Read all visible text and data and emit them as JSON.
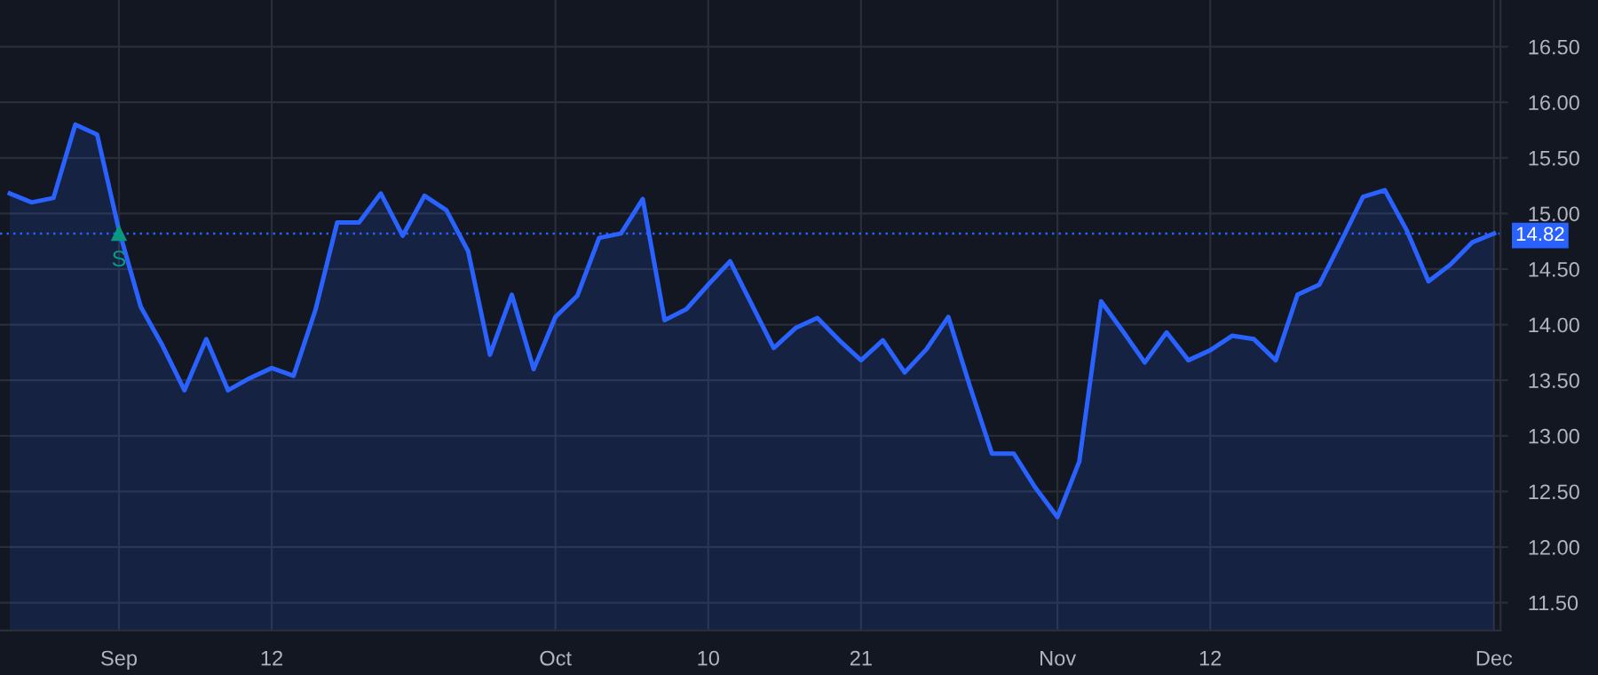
{
  "chart_data": {
    "type": "area",
    "categories": [
      null,
      null,
      null,
      null,
      null,
      "Sep",
      null,
      null,
      null,
      null,
      null,
      null,
      "12",
      null,
      null,
      null,
      null,
      null,
      null,
      null,
      null,
      null,
      null,
      null,
      null,
      "Oct",
      null,
      null,
      null,
      null,
      null,
      null,
      "10",
      null,
      null,
      null,
      null,
      null,
      null,
      "21",
      null,
      null,
      null,
      null,
      null,
      null,
      null,
      null,
      "Nov",
      null,
      null,
      null,
      null,
      null,
      null,
      "12",
      null,
      null,
      null,
      null,
      null,
      null,
      null,
      null,
      null,
      null,
      null,
      null,
      "Dec"
    ],
    "series": [
      {
        "color": "#2962ff",
        "values": [
          15.18,
          15.1,
          15.14,
          15.8,
          15.71,
          14.85,
          14.16,
          13.81,
          13.41,
          13.87,
          13.41,
          13.52,
          13.61,
          13.54,
          14.13,
          14.92,
          14.92,
          15.18,
          14.8,
          15.16,
          15.03,
          14.66,
          13.73,
          14.27,
          13.6,
          14.07,
          14.26,
          14.78,
          14.82,
          15.13,
          14.04,
          14.14,
          14.36,
          14.57,
          14.18,
          13.79,
          13.97,
          14.06,
          13.86,
          13.68,
          13.86,
          13.57,
          13.78,
          14.07,
          13.44,
          12.84,
          12.84,
          12.53,
          12.27,
          12.77,
          14.21,
          13.94,
          13.66,
          13.93,
          13.68,
          13.77,
          13.9,
          13.87,
          13.68,
          14.27,
          14.36,
          14.75,
          15.15,
          15.21,
          14.85,
          14.39,
          14.54,
          14.74,
          14.82
        ]
      }
    ],
    "ylim": [
      11.25,
      16.92
    ],
    "yticks": [
      {
        "value": 11.5,
        "label": "11.50"
      },
      {
        "value": 12,
        "label": "12.00"
      },
      {
        "value": 12.5,
        "label": "12.50"
      },
      {
        "value": 13,
        "label": "13.00"
      },
      {
        "value": 13.5,
        "label": "13.50"
      },
      {
        "value": 14,
        "label": "14.00"
      },
      {
        "value": 14.5,
        "label": "14.50"
      },
      {
        "value": 15,
        "label": "15.00"
      },
      {
        "value": 15.5,
        "label": "15.50"
      },
      {
        "value": 16,
        "label": "16.00"
      },
      {
        "value": 16.5,
        "label": "16.50"
      }
    ],
    "grid": true,
    "ref_lines": [
      {
        "axis": "y",
        "value": 14.82,
        "label": "14.82",
        "color": "#2962ff",
        "line_style": "dotted"
      }
    ],
    "annotations": [
      {
        "text": "S",
        "x": "Sep",
        "y": 14.82
      }
    ]
  }
}
